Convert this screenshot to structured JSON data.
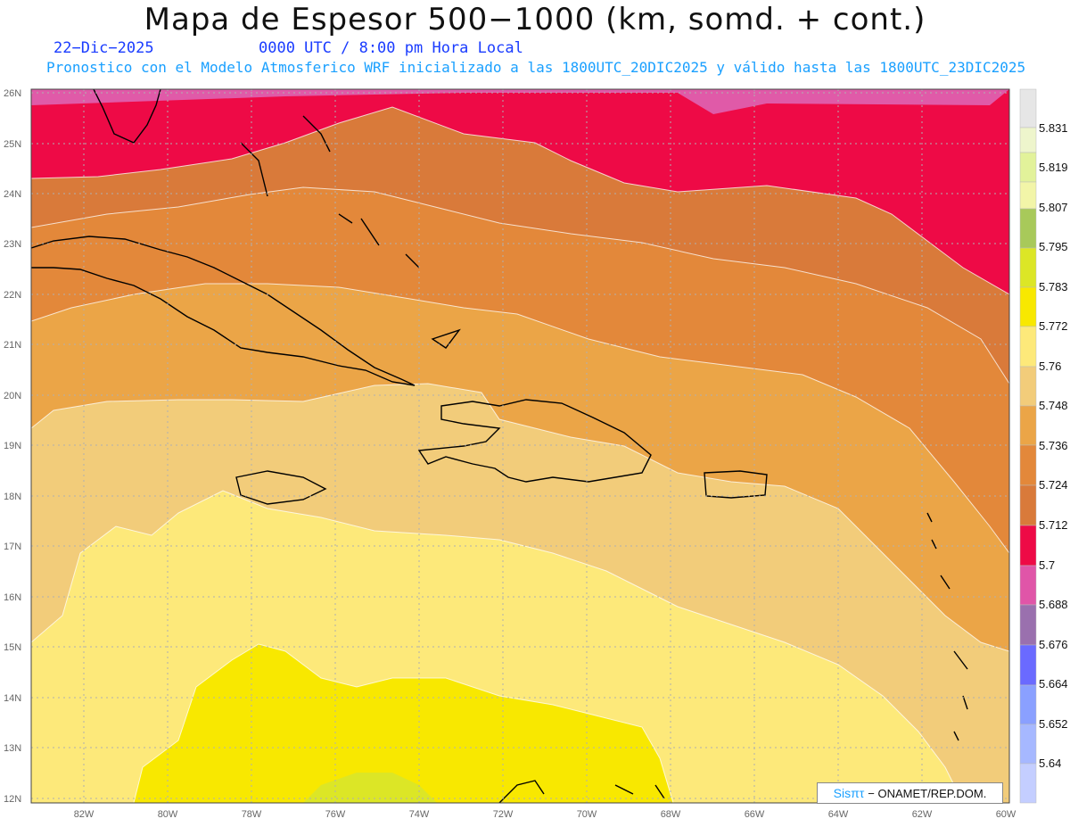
{
  "title": "Mapa de Espesor 500−1000 (km, somd. + cont.)",
  "date_label": "22−Dic−2025",
  "time_label": "0000 UTC / 8:00 pm Hora Local",
  "forecast_label": "Pronostico con el Modelo Atmosferico WRF inicializado a las 1800UTC_20DIC2025 y válido hasta las  1800UTC_23DIC2025",
  "credit": {
    "brand": "Sisπτ",
    "text": "− ONAMET/REP.DOM."
  },
  "lat_labels": [
    "26N",
    "25N",
    "24N",
    "23N",
    "22N",
    "21N",
    "20N",
    "19N",
    "18N",
    "17N",
    "16N",
    "15N",
    "14N",
    "13N",
    "12N"
  ],
  "lon_labels": [
    "82W",
    "80W",
    "78W",
    "76W",
    "74W",
    "72W",
    "70W",
    "68W",
    "66W",
    "64W",
    "62W",
    "60W"
  ],
  "colorbar": {
    "levels": [
      "5.831",
      "5.819",
      "5.807",
      "5.795",
      "5.783",
      "5.772",
      "5.76",
      "5.748",
      "5.736",
      "5.724",
      "5.712",
      "5.7",
      "5.688",
      "5.676",
      "5.664",
      "5.652",
      "5.64"
    ],
    "colors": [
      "#e6e6e6",
      "#eef5cc",
      "#e2f29a",
      "#a8c95a",
      "#dce626",
      "#f8e800",
      "#fde97a",
      "#f2cc7a",
      "#eba547",
      "#e3883a",
      "#d97a3a",
      "#ee0a46",
      "#e055a8",
      "#9a70ae",
      "#6a6aff",
      "#8aa0ff",
      "#a6b8ff",
      "#c4ceff"
    ]
  },
  "colors": {
    "band_pink": "#e05aa8",
    "band_red": "#ee0a46",
    "band_darkorange": "#d97a3a",
    "band_orange": "#e3883a",
    "band_lightorange": "#eba547",
    "band_tan": "#f2cc7a",
    "band_paleyellow": "#fde97a",
    "band_yellow": "#f8e800",
    "band_green": "#dce626"
  }
}
